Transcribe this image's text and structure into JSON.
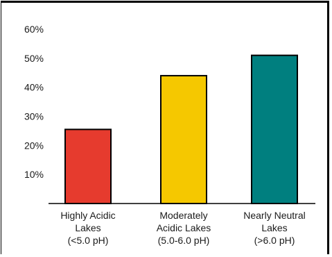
{
  "chart_data": {
    "type": "bar",
    "categories": [
      [
        "Highly Acidic",
        "Lakes",
        "(<5.0 pH)"
      ],
      [
        "Moderately",
        "Acidic Lakes",
        "(5.0-6.0 pH)"
      ],
      [
        "Nearly Neutral",
        "Lakes",
        "(>6.0 pH)"
      ]
    ],
    "values": [
      25.5,
      44,
      51
    ],
    "colors": [
      "#e63b2e",
      "#f5c800",
      "#007f7f"
    ],
    "y_ticks": [
      "10%",
      "20%",
      "30%",
      "40%",
      "50%",
      "60%"
    ],
    "ylim": [
      0,
      60
    ],
    "grid": false,
    "legend": "none"
  }
}
